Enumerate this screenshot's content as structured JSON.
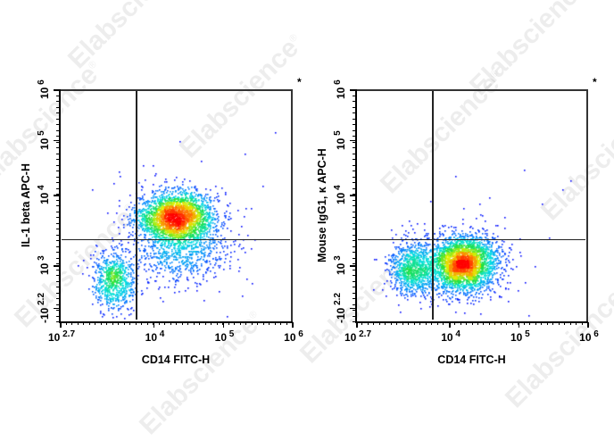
{
  "watermark": {
    "text": "Elabscience",
    "mark": "®"
  },
  "colors": {
    "frame": "#333333",
    "gate": "#222222",
    "density_scale": [
      "#0000ff",
      "#0080ff",
      "#00e0e0",
      "#20e040",
      "#e0f000",
      "#ff8000",
      "#ff0000"
    ]
  },
  "chart_data": [
    {
      "type": "scatter",
      "subtype": "flow-cytometry-pseudocolor-density",
      "title": "",
      "corner_mark": "*",
      "xlabel": "CD14 FITC-H",
      "ylabel": "IL-1 beta APC-H",
      "x_scale": "biexponential/log",
      "y_scale": "biexponential/log",
      "xlim": [
        "10^2.7",
        "10^6"
      ],
      "ylim": [
        "-10^2.2",
        "10^6"
      ],
      "x_ticks": [
        {
          "base": "10",
          "exp": "2.7",
          "pos": 0.0
        },
        {
          "base": "10",
          "exp": "4",
          "pos": 0.402
        },
        {
          "base": "10",
          "exp": "5",
          "pos": 0.702
        },
        {
          "base": "10",
          "exp": "6",
          "pos": 1.0
        }
      ],
      "y_ticks": [
        {
          "base": "-10",
          "exp": "2.2",
          "pos": 0.058
        },
        {
          "base": "10",
          "exp": "3",
          "pos": 0.242
        },
        {
          "base": "10",
          "exp": "4",
          "pos": 0.546
        },
        {
          "base": "10",
          "exp": "5",
          "pos": 0.781
        },
        {
          "base": "10",
          "exp": "6",
          "pos": 1.0
        }
      ],
      "gates": {
        "vertical_x": 0.327,
        "horizontal_y": 0.354
      },
      "populations": [
        {
          "name": "CD14+ IL-1beta+ (main)",
          "cx": 0.5,
          "cy": 0.45,
          "sx": 0.085,
          "sy": 0.055,
          "n": 2600,
          "quadrant": "upper-right"
        },
        {
          "name": "CD14+ IL-1beta low tail",
          "cx": 0.52,
          "cy": 0.3,
          "sx": 0.11,
          "sy": 0.06,
          "n": 650,
          "quadrant": "lower-right"
        },
        {
          "name": "CD14- IL-1beta-",
          "cx": 0.23,
          "cy": 0.18,
          "sx": 0.045,
          "sy": 0.06,
          "n": 750,
          "quadrant": "lower-left"
        },
        {
          "name": "scatter outliers",
          "cx": 0.5,
          "cy": 0.4,
          "sx": 0.22,
          "sy": 0.2,
          "n": 70,
          "quadrant": "mixed"
        }
      ]
    },
    {
      "type": "scatter",
      "subtype": "flow-cytometry-pseudocolor-density",
      "title": "",
      "corner_mark": "*",
      "xlabel": "CD14 FITC-H",
      "ylabel": "Mouse IgG1, κ APC-H",
      "x_scale": "biexponential/log",
      "y_scale": "biexponential/log",
      "xlim": [
        "10^2.7",
        "10^6"
      ],
      "ylim": [
        "-10^2.2",
        "10^6"
      ],
      "x_ticks": [
        {
          "base": "10",
          "exp": "2.7",
          "pos": 0.0
        },
        {
          "base": "10",
          "exp": "4",
          "pos": 0.402
        },
        {
          "base": "10",
          "exp": "5",
          "pos": 0.702
        },
        {
          "base": "10",
          "exp": "6",
          "pos": 1.0
        }
      ],
      "y_ticks": [
        {
          "base": "-10",
          "exp": "2.2",
          "pos": 0.058
        },
        {
          "base": "10",
          "exp": "3",
          "pos": 0.242
        },
        {
          "base": "10",
          "exp": "4",
          "pos": 0.546
        },
        {
          "base": "10",
          "exp": "5",
          "pos": 0.781
        },
        {
          "base": "10",
          "exp": "6",
          "pos": 1.0
        }
      ],
      "gates": {
        "vertical_x": 0.329,
        "horizontal_y": 0.354
      },
      "populations": [
        {
          "name": "CD14+ isotype (main)",
          "cx": 0.46,
          "cy": 0.25,
          "sx": 0.075,
          "sy": 0.06,
          "n": 3000,
          "quadrant": "lower-right"
        },
        {
          "name": "CD14- isotype",
          "cx": 0.24,
          "cy": 0.23,
          "sx": 0.05,
          "sy": 0.06,
          "n": 900,
          "quadrant": "lower-left"
        },
        {
          "name": "scatter outliers",
          "cx": 0.45,
          "cy": 0.35,
          "sx": 0.2,
          "sy": 0.16,
          "n": 60,
          "quadrant": "mixed"
        }
      ]
    }
  ],
  "panels": [
    {
      "xlabel": "CD14 FITC-H",
      "ylabel": "IL-1 beta APC-H",
      "corner_mark": "*"
    },
    {
      "xlabel": "CD14 FITC-H",
      "ylabel": "Mouse IgG1, κ APC-H",
      "corner_mark": "*"
    }
  ]
}
